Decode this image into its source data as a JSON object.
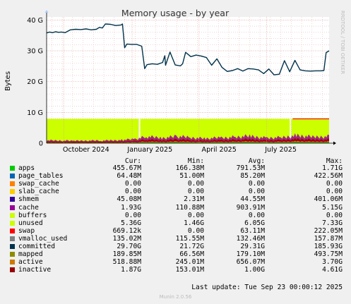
{
  "chart_data": {
    "type": "area",
    "title": "Memory usage - by year",
    "ylabel": "Bytes",
    "watermark": "RRDTOOL / TOBI OETIKER",
    "x_ticks": [
      "October 2024",
      "January 2025",
      "April 2025",
      "July 2025"
    ],
    "x_range": [
      "2024-09-08",
      "2025-09-23"
    ],
    "y_ticks": [
      "0",
      "10 G",
      "20 G",
      "30 G",
      "40 G"
    ],
    "y_tick_values": [
      0,
      10,
      20,
      30,
      40
    ],
    "ylim": [
      0,
      41
    ],
    "y_unit": "G",
    "grid": true,
    "colors": {
      "apps": "#00cc00",
      "page_tables": "#0066b3",
      "swap_cache": "#ff8000",
      "slab_cache": "#ffcc00",
      "shmem": "#330099",
      "cache": "#990099",
      "buffers": "#ccff00",
      "unused": "#ccff00",
      "swap": "#ff0000",
      "vmalloc_used": "#808080",
      "committed": "#00334d",
      "mapped": "#8c8c00",
      "active": "#cc7a00",
      "inactive": "#990000"
    },
    "committed_series": {
      "name": "committed",
      "x": [
        "2024-09-08",
        "2024-09-12",
        "2024-09-16",
        "2024-09-20",
        "2024-09-24",
        "2024-09-28",
        "2024-10-03",
        "2024-10-10",
        "2024-10-17",
        "2024-10-24",
        "2024-10-31",
        "2024-11-07",
        "2024-11-14",
        "2024-11-18",
        "2024-11-22",
        "2024-11-26",
        "2024-12-03",
        "2024-12-10",
        "2024-12-17",
        "2024-12-19",
        "2024-12-22",
        "2024-12-25",
        "2024-12-31",
        "2025-01-07",
        "2025-01-14",
        "2025-01-18",
        "2025-01-21",
        "2025-01-28",
        "2025-02-04",
        "2025-02-11",
        "2025-02-14",
        "2025-02-15",
        "2025-02-21",
        "2025-02-28",
        "2025-03-07",
        "2025-03-10",
        "2025-03-14",
        "2025-03-21",
        "2025-03-28",
        "2025-04-04",
        "2025-04-11",
        "2025-04-18",
        "2025-04-25",
        "2025-05-02",
        "2025-05-09",
        "2025-05-16",
        "2025-05-23",
        "2025-05-30",
        "2025-06-06",
        "2025-06-13",
        "2025-06-20",
        "2025-06-27",
        "2025-07-04",
        "2025-07-11",
        "2025-07-18",
        "2025-07-25",
        "2025-08-01",
        "2025-08-08",
        "2025-08-15",
        "2025-08-22",
        "2025-08-29",
        "2025-09-05",
        "2025-09-12",
        "2025-09-16",
        "2025-09-19",
        "2025-09-23"
      ],
      "values": [
        35.8,
        36.1,
        35.9,
        36.2,
        36.0,
        36.1,
        35.9,
        36.8,
        37.0,
        36.9,
        37.1,
        36.8,
        37.0,
        37.6,
        37.4,
        38.7,
        38.6,
        38.2,
        38.4,
        38.7,
        31.0,
        32.2,
        32.1,
        32.1,
        31.5,
        24.2,
        25.5,
        25.8,
        25.6,
        26.2,
        28.4,
        25.3,
        29.6,
        25.4,
        25.1,
        25.8,
        29.5,
        28.1,
        28.6,
        28.3,
        27.8,
        25.3,
        27.4,
        24.6,
        23.3,
        23.6,
        24.2,
        23.4,
        24.2,
        24.1,
        23.8,
        22.6,
        24.1,
        22.2,
        22.4,
        26.8,
        23.2,
        26.9,
        23.8,
        23.5,
        23.4,
        23.5,
        23.5,
        23.6,
        29.4,
        30.0
      ]
    },
    "unused_band": {
      "name": "unused",
      "top": 7.9,
      "gaps": [
        [
          "2025-01-10",
          "2025-01-12"
        ],
        [
          "2025-08-01",
          "2025-08-03"
        ]
      ]
    },
    "swap_line": {
      "name": "swap",
      "x": [
        "2025-08-05",
        "2025-09-23"
      ],
      "values": [
        7.9,
        7.9
      ]
    },
    "stacked_activity": {
      "name": "cache/active/inactive",
      "x": [
        "2024-09-08",
        "2024-10-15",
        "2024-11-20",
        "2024-12-20",
        "2025-01-05",
        "2025-01-20",
        "2025-02-10",
        "2025-03-01",
        "2025-03-20",
        "2025-04-10",
        "2025-05-01",
        "2025-05-20",
        "2025-06-10",
        "2025-07-01",
        "2025-07-20",
        "2025-08-10",
        "2025-09-01",
        "2025-09-23"
      ],
      "values": [
        1.1,
        0.9,
        1.0,
        1.2,
        1.6,
        2.5,
        2.0,
        2.6,
        2.2,
        1.8,
        2.1,
        2.4,
        2.7,
        2.0,
        2.2,
        3.0,
        2.4,
        2.6
      ]
    },
    "legend_header": [
      "Cur:",
      "Min:",
      "Avg:",
      "Max:"
    ],
    "legend": [
      {
        "name": "apps",
        "color": "#00cc00",
        "cur": "455.67M",
        "min": "166.38M",
        "avg": "791.53M",
        "max": "1.71G"
      },
      {
        "name": "page_tables",
        "color": "#0066b3",
        "cur": "64.48M",
        "min": "51.00M",
        "avg": "85.20M",
        "max": "422.56M"
      },
      {
        "name": "swap_cache",
        "color": "#ff8000",
        "cur": "0.00",
        "min": "0.00",
        "avg": "0.00",
        "max": "0.00"
      },
      {
        "name": "slab_cache",
        "color": "#ffcc00",
        "cur": "0.00",
        "min": "0.00",
        "avg": "0.00",
        "max": "0.00"
      },
      {
        "name": "shmem",
        "color": "#330099",
        "cur": "45.08M",
        "min": "2.31M",
        "avg": "44.55M",
        "max": "401.06M"
      },
      {
        "name": "cache",
        "color": "#990099",
        "cur": "1.93G",
        "min": "110.88M",
        "avg": "903.91M",
        "max": "5.15G"
      },
      {
        "name": "buffers",
        "color": "#ccff00",
        "cur": "0.00",
        "min": "0.00",
        "avg": "0.00",
        "max": "0.00"
      },
      {
        "name": "unused",
        "color": "#ccff00",
        "cur": "5.36G",
        "min": "1.46G",
        "avg": "6.05G",
        "max": "7.33G"
      },
      {
        "name": "swap",
        "color": "#ff0000",
        "cur": "669.12k",
        "min": "0.00",
        "avg": "63.11M",
        "max": "222.05M"
      },
      {
        "name": "vmalloc_used",
        "color": "#808080",
        "cur": "135.02M",
        "min": "115.55M",
        "avg": "132.46M",
        "max": "157.87M"
      },
      {
        "name": "committed",
        "color": "#00334d",
        "cur": "29.70G",
        "min": "21.72G",
        "avg": "29.31G",
        "max": "185.93G"
      },
      {
        "name": "mapped",
        "color": "#8c8c00",
        "cur": "189.85M",
        "min": "66.56M",
        "avg": "179.10M",
        "max": "493.75M"
      },
      {
        "name": "active",
        "color": "#cc7a00",
        "cur": "518.88M",
        "min": "245.01M",
        "avg": "656.07M",
        "max": "3.70G"
      },
      {
        "name": "inactive",
        "color": "#990000",
        "cur": "1.87G",
        "min": "153.01M",
        "avg": "1.00G",
        "max": "4.61G"
      }
    ]
  },
  "footer": {
    "last_update": "Last update: Tue Sep 23 00:00:12 2025",
    "version": "Munin 2.0.56"
  }
}
